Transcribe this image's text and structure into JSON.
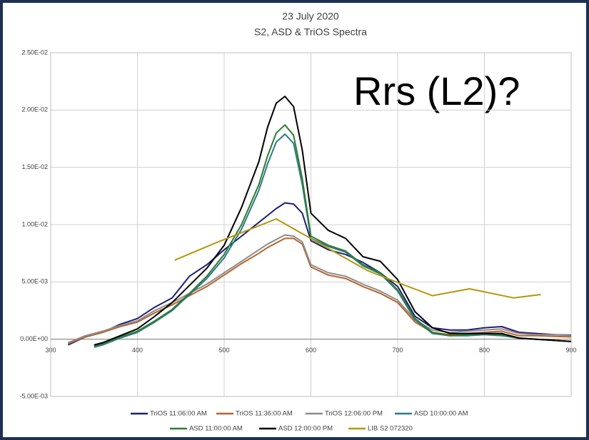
{
  "chart_data": {
    "type": "line",
    "title": "23 July 2020",
    "subtitle": "S2, ASD & TriOS Spectra",
    "annotation": "Rrs (L2)?",
    "xlim": [
      300,
      900
    ],
    "xticks": [
      300,
      400,
      500,
      600,
      700,
      800,
      900
    ],
    "ylim": [
      -0.005,
      0.025
    ],
    "yticks": [
      {
        "value": -0.005,
        "label": "-5.00E-03"
      },
      {
        "value": 0,
        "label": "0.00E+00"
      },
      {
        "value": 0.005,
        "label": "5.00E-03"
      },
      {
        "value": 0.01,
        "label": "1.00E-02"
      },
      {
        "value": 0.015,
        "label": "1.50E-02"
      },
      {
        "value": 0.02,
        "label": "2.00E-02"
      },
      {
        "value": 0.025,
        "label": "2.50E-02"
      }
    ],
    "grid": true,
    "legend": "bottom",
    "series": [
      {
        "name": "TriOS 11:06:00 AM",
        "color": "#1f1f78",
        "x": [
          320,
          340,
          360,
          380,
          400,
          420,
          440,
          460,
          480,
          500,
          520,
          540,
          550,
          560,
          570,
          580,
          590,
          600,
          620,
          640,
          660,
          680,
          700,
          720,
          740,
          760,
          780,
          800,
          820,
          840,
          860,
          880,
          900
        ],
        "values": [
          -0.0005,
          0.0002,
          0.0006,
          0.0013,
          0.0018,
          0.0028,
          0.0036,
          0.0055,
          0.0065,
          0.0078,
          0.009,
          0.0102,
          0.0108,
          0.0114,
          0.0119,
          0.0118,
          0.011,
          0.0086,
          0.0078,
          0.0074,
          0.0067,
          0.0058,
          0.0046,
          0.002,
          0.001,
          0.0008,
          0.0008,
          0.001,
          0.0011,
          0.0006,
          0.0005,
          0.0004,
          0.00035
        ]
      },
      {
        "name": "TriOS 11:36:00 AM",
        "color": "#b9622b",
        "x": [
          320,
          340,
          360,
          380,
          400,
          420,
          440,
          460,
          480,
          500,
          520,
          540,
          550,
          560,
          570,
          580,
          590,
          600,
          620,
          640,
          660,
          680,
          700,
          720,
          740,
          760,
          780,
          800,
          820,
          840,
          860,
          880,
          900
        ],
        "values": [
          -0.0004,
          0.0002,
          0.0006,
          0.0011,
          0.0015,
          0.0023,
          0.003,
          0.0038,
          0.0046,
          0.0056,
          0.0066,
          0.0075,
          0.008,
          0.0084,
          0.0088,
          0.0088,
          0.0083,
          0.0063,
          0.0056,
          0.0053,
          0.0046,
          0.004,
          0.0032,
          0.0015,
          0.0006,
          0.0004,
          0.0005,
          0.0006,
          0.0007,
          0.0003,
          0.0003,
          0.00025,
          0.0002
        ]
      },
      {
        "name": "TriOS 12:06:00 PM",
        "color": "#8c8c8c",
        "x": [
          320,
          340,
          360,
          380,
          400,
          420,
          440,
          460,
          480,
          500,
          520,
          540,
          550,
          560,
          570,
          580,
          590,
          600,
          620,
          640,
          660,
          680,
          700,
          720,
          740,
          760,
          780,
          800,
          820,
          840,
          860,
          880,
          900
        ],
        "values": [
          -0.0003,
          0.0003,
          0.0007,
          0.0012,
          0.0016,
          0.0025,
          0.0032,
          0.004,
          0.0048,
          0.0058,
          0.0068,
          0.0078,
          0.0083,
          0.0087,
          0.0091,
          0.009,
          0.0085,
          0.0065,
          0.0058,
          0.0055,
          0.0048,
          0.0042,
          0.0034,
          0.0017,
          0.0008,
          0.0006,
          0.0007,
          0.0008,
          0.0009,
          0.0005,
          0.0004,
          0.0004,
          0.0003
        ]
      },
      {
        "name": "ASD 10:00:00 AM",
        "color": "#2b7a8c",
        "x": [
          350,
          360,
          380,
          400,
          420,
          440,
          460,
          480,
          500,
          520,
          540,
          550,
          560,
          570,
          580,
          590,
          600,
          620,
          640,
          660,
          680,
          700,
          720,
          740,
          760,
          780,
          800,
          820,
          840,
          860,
          880,
          900
        ],
        "values": [
          -0.0007,
          -0.0005,
          0.0001,
          0.0006,
          0.0015,
          0.0025,
          0.0039,
          0.0053,
          0.0071,
          0.0096,
          0.013,
          0.0153,
          0.0172,
          0.0179,
          0.0171,
          0.0135,
          0.0088,
          0.0081,
          0.0076,
          0.0064,
          0.0057,
          0.0042,
          0.0017,
          0.0005,
          0.0003,
          0.0003,
          0.0004,
          0.0003,
          0.0001,
          0.0,
          -0.0001,
          -0.0002
        ]
      },
      {
        "name": "ASD 11:00:00 AM",
        "color": "#2e7d2e",
        "x": [
          350,
          360,
          380,
          400,
          420,
          440,
          460,
          480,
          500,
          520,
          540,
          550,
          560,
          570,
          580,
          590,
          600,
          620,
          640,
          660,
          680,
          700,
          720,
          740,
          760,
          780,
          800,
          820,
          840,
          860,
          880,
          900
        ],
        "values": [
          -0.0006,
          -0.0004,
          0.0002,
          0.0007,
          0.0016,
          0.0026,
          0.004,
          0.0055,
          0.0074,
          0.01,
          0.0135,
          0.016,
          0.018,
          0.0187,
          0.0178,
          0.014,
          0.009,
          0.0082,
          0.0077,
          0.0065,
          0.0058,
          0.0043,
          0.0018,
          0.0006,
          0.0003,
          0.0004,
          0.0005,
          0.0004,
          0.0001,
          0.0,
          -0.0001,
          -0.0002
        ]
      },
      {
        "name": "ASD 12:00:00 PM",
        "color": "#000000",
        "x": [
          350,
          360,
          380,
          400,
          420,
          440,
          460,
          480,
          500,
          520,
          540,
          550,
          560,
          570,
          580,
          590,
          600,
          620,
          640,
          660,
          680,
          700,
          720,
          740,
          760,
          780,
          800,
          820,
          840,
          860,
          880,
          900
        ],
        "values": [
          -0.0005,
          -0.0003,
          0.0003,
          0.0009,
          0.002,
          0.0032,
          0.0047,
          0.0062,
          0.0082,
          0.0115,
          0.0155,
          0.0185,
          0.0206,
          0.0212,
          0.0203,
          0.0165,
          0.011,
          0.0095,
          0.0088,
          0.0072,
          0.0068,
          0.0052,
          0.0024,
          0.001,
          0.0005,
          0.0005,
          0.0005,
          0.0005,
          0.0001,
          0.0,
          -0.0001,
          -0.0002
        ]
      },
      {
        "name": "LIB S2 072320",
        "color": "#b8960c",
        "x": [
          443,
          490,
          560,
          665,
          705,
          740,
          783,
          834,
          865
        ],
        "values": [
          0.0069,
          0.0084,
          0.0105,
          0.006,
          0.0048,
          0.0038,
          0.0044,
          0.0036,
          0.0039
        ]
      }
    ]
  }
}
